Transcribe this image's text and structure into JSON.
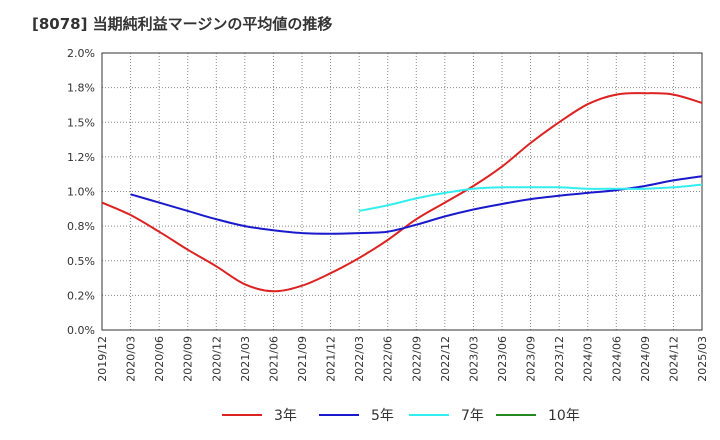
{
  "title": "[8078]  当期純利益マージンの平均値の推移",
  "chart_data": {
    "type": "line",
    "title": "[8078]  当期純利益マージンの平均値の推移",
    "xlabel": "",
    "ylabel": "",
    "ylim": [
      0,
      2.0
    ],
    "y_ticks": [
      "0.0%",
      "0.2%",
      "0.5%",
      "0.8%",
      "1.0%",
      "1.2%",
      "1.5%",
      "1.8%",
      "2.0%"
    ],
    "x_ticks": [
      "2019/12",
      "2020/03",
      "2020/06",
      "2020/09",
      "2020/12",
      "2021/03",
      "2021/06",
      "2021/09",
      "2021/12",
      "2022/03",
      "2022/06",
      "2022/09",
      "2022/12",
      "2023/03",
      "2023/06",
      "2023/09",
      "2023/12",
      "2024/03",
      "2024/06",
      "2024/09",
      "2024/12",
      "2025/03"
    ],
    "grid": true,
    "legend_position": "bottom",
    "series": [
      {
        "name": "3年",
        "color": "#dd2222",
        "points": [
          [
            "2019/12",
            0.92
          ],
          [
            "2020/03",
            0.83
          ],
          [
            "2020/06",
            0.71
          ],
          [
            "2020/09",
            0.58
          ],
          [
            "2020/12",
            0.46
          ],
          [
            "2021/03",
            0.33
          ],
          [
            "2021/06",
            0.28
          ],
          [
            "2021/09",
            0.32
          ],
          [
            "2021/12",
            0.41
          ],
          [
            "2022/03",
            0.52
          ],
          [
            "2022/06",
            0.65
          ],
          [
            "2022/09",
            0.8
          ],
          [
            "2022/12",
            0.92
          ],
          [
            "2023/03",
            1.04
          ],
          [
            "2023/06",
            1.18
          ],
          [
            "2023/09",
            1.35
          ],
          [
            "2023/12",
            1.5
          ],
          [
            "2024/03",
            1.63
          ],
          [
            "2024/06",
            1.7
          ],
          [
            "2024/09",
            1.71
          ],
          [
            "2024/12",
            1.7
          ],
          [
            "2025/03",
            1.64
          ]
        ]
      },
      {
        "name": "5年",
        "color": "#1a1acc",
        "points": [
          [
            "2020/03",
            0.98
          ],
          [
            "2020/06",
            0.92
          ],
          [
            "2020/09",
            0.86
          ],
          [
            "2020/12",
            0.8
          ],
          [
            "2021/03",
            0.75
          ],
          [
            "2021/06",
            0.72
          ],
          [
            "2021/09",
            0.7
          ],
          [
            "2021/12",
            0.695
          ],
          [
            "2022/03",
            0.7
          ],
          [
            "2022/06",
            0.71
          ],
          [
            "2022/09",
            0.76
          ],
          [
            "2022/12",
            0.82
          ],
          [
            "2023/03",
            0.87
          ],
          [
            "2023/06",
            0.91
          ],
          [
            "2023/09",
            0.945
          ],
          [
            "2023/12",
            0.97
          ],
          [
            "2024/03",
            0.99
          ],
          [
            "2024/06",
            1.01
          ],
          [
            "2024/09",
            1.04
          ],
          [
            "2024/12",
            1.08
          ],
          [
            "2025/03",
            1.11
          ]
        ]
      },
      {
        "name": "7年",
        "color": "#33eeee",
        "points": [
          [
            "2022/03",
            0.86
          ],
          [
            "2022/06",
            0.9
          ],
          [
            "2022/09",
            0.95
          ],
          [
            "2022/12",
            0.99
          ],
          [
            "2023/03",
            1.02
          ],
          [
            "2023/06",
            1.03
          ],
          [
            "2023/09",
            1.03
          ],
          [
            "2023/12",
            1.03
          ],
          [
            "2024/03",
            1.02
          ],
          [
            "2024/06",
            1.02
          ],
          [
            "2024/09",
            1.02
          ],
          [
            "2024/12",
            1.03
          ],
          [
            "2025/03",
            1.05
          ]
        ]
      },
      {
        "name": "10年",
        "color": "#228822",
        "points": []
      }
    ]
  }
}
